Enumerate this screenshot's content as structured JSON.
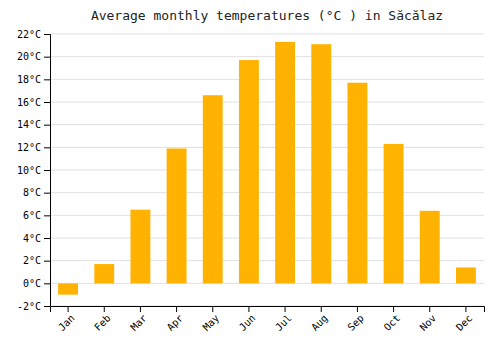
{
  "chart_data": {
    "type": "bar",
    "title": "Average monthly temperatures (°C ) in Săcălaz",
    "categories": [
      "Jan",
      "Feb",
      "Mar",
      "Apr",
      "May",
      "Jun",
      "Jul",
      "Aug",
      "Sep",
      "Oct",
      "Nov",
      "Dec"
    ],
    "values": [
      -1.0,
      1.7,
      6.5,
      11.9,
      16.6,
      19.7,
      21.3,
      21.1,
      17.7,
      12.3,
      6.4,
      1.4
    ],
    "color": "#FFB300",
    "ylim": [
      -2,
      22
    ],
    "yticks": [
      {
        "value": -2,
        "label": "-2°C"
      },
      {
        "value": 0,
        "label": "0°C"
      },
      {
        "value": 2,
        "label": "2°C"
      },
      {
        "value": 4,
        "label": "4°C"
      },
      {
        "value": 6,
        "label": "6°C"
      },
      {
        "value": 8,
        "label": "8°C"
      },
      {
        "value": 10,
        "label": "10°C"
      },
      {
        "value": 12,
        "label": "12°C"
      },
      {
        "value": 14,
        "label": "14°C"
      },
      {
        "value": 16,
        "label": "16°C"
      },
      {
        "value": 18,
        "label": "18°C"
      },
      {
        "value": 20,
        "label": "20°C"
      },
      {
        "value": 22,
        "label": "22°C"
      }
    ],
    "grid": true
  }
}
